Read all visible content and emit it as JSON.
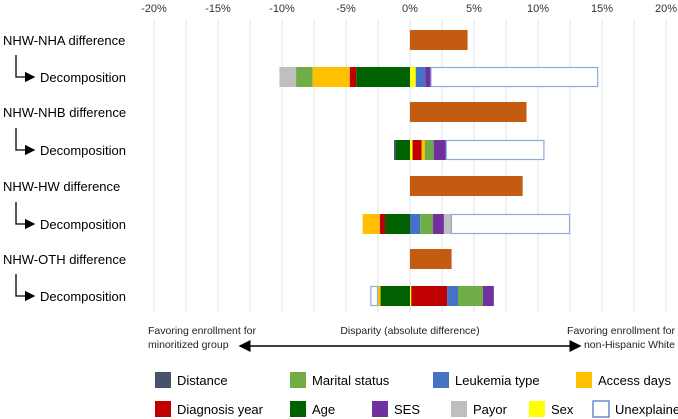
{
  "chart_data": {
    "type": "bar",
    "orientation": "horizontal-stacked",
    "xlim": [
      -20,
      20
    ],
    "x_ticks": [
      "-20%",
      "-15%",
      "-10%",
      "-5%",
      "0%",
      "5%",
      "10%",
      "15%",
      "20%"
    ],
    "x_tick_values": [
      -20,
      -15,
      -10,
      -5,
      0,
      5,
      10,
      15,
      20
    ],
    "grid": "vertical every 2.5%",
    "colors": {
      "difference": "#C55A11",
      "Distance": "#44546A",
      "Marital status": "#70AD47",
      "Leukemia type": "#4472C4",
      "Access days": "#FFC000",
      "Diagnosis year": "#C00000",
      "Age": "#006100",
      "SES": "#7030A0",
      "Payor": "#BFBFBF",
      "Sex": "#FFFF00",
      "Unexplained": "#FFFFFF"
    },
    "rows": [
      {
        "label": "NHW-NHA difference",
        "kind": "difference",
        "value": 4.5
      },
      {
        "label": "Decomposition",
        "kind": "decomposition",
        "segments": [
          {
            "name": "Payor",
            "value": -1.3
          },
          {
            "name": "Marital status",
            "value": -1.3
          },
          {
            "name": "Access days",
            "value": -2.9
          },
          {
            "name": "Diagnosis year",
            "value": -0.5
          },
          {
            "name": "Age",
            "value": -4.2
          },
          {
            "name": "Sex",
            "value": 0.45
          },
          {
            "name": "Leukemia type",
            "value": 0.75
          },
          {
            "name": "SES",
            "value": 0.4
          },
          {
            "name": "Unexplained",
            "value": 13.1
          }
        ]
      },
      {
        "label": "NHW-NHB difference",
        "kind": "difference",
        "value": 9.1
      },
      {
        "label": "Decomposition",
        "kind": "decomposition",
        "segments": [
          {
            "name": "Distance",
            "value": -0.15
          },
          {
            "name": "Age",
            "value": -1.1
          },
          {
            "name": "Sex",
            "value": 0.2
          },
          {
            "name": "Diagnosis year",
            "value": 0.7
          },
          {
            "name": "Access days",
            "value": 0.25
          },
          {
            "name": "Marital status",
            "value": 0.7
          },
          {
            "name": "SES",
            "value": 0.95
          },
          {
            "name": "Unexplained",
            "value": 7.7
          }
        ]
      },
      {
        "label": "NHW-HW difference",
        "kind": "difference",
        "value": 8.8
      },
      {
        "label": "Decomposition",
        "kind": "decomposition",
        "segments": [
          {
            "name": "Access days",
            "value": -1.35
          },
          {
            "name": "Diagnosis year",
            "value": -0.4
          },
          {
            "name": "Age",
            "value": -1.95
          },
          {
            "name": "Leukemia type",
            "value": 0.8
          },
          {
            "name": "Marital status",
            "value": 1.0
          },
          {
            "name": "SES",
            "value": 0.85
          },
          {
            "name": "Payor",
            "value": 0.55
          },
          {
            "name": "Unexplained",
            "value": 9.3
          }
        ]
      },
      {
        "label": "NHW-OTH difference",
        "kind": "difference",
        "value": 3.25
      },
      {
        "label": "Decomposition",
        "kind": "decomposition",
        "segments": [
          {
            "name": "Unexplained",
            "value": -0.6
          },
          {
            "name": "Access days",
            "value": -0.2
          },
          {
            "name": "Age",
            "value": -2.3
          },
          {
            "name": "Sex",
            "value": 0.1
          },
          {
            "name": "Diagnosis year",
            "value": 2.8
          },
          {
            "name": "Leukemia type",
            "value": 0.85
          },
          {
            "name": "Marital status",
            "value": 1.95
          },
          {
            "name": "SES",
            "value": 0.85
          }
        ]
      }
    ],
    "annotations": {
      "left": [
        "Favoring enrollment for",
        "minoritized group"
      ],
      "center": "Disparity (absolute difference)",
      "right": [
        "Favoring enrollment for",
        "non-Hispanic White"
      ]
    },
    "legend": [
      [
        "Distance",
        "Marital status",
        "Leukemia type",
        "Access days"
      ],
      [
        "Diagnosis year",
        "Age",
        "SES",
        "Payor",
        "Sex",
        "Unexplained"
      ]
    ],
    "legend_placement": "bottom"
  }
}
